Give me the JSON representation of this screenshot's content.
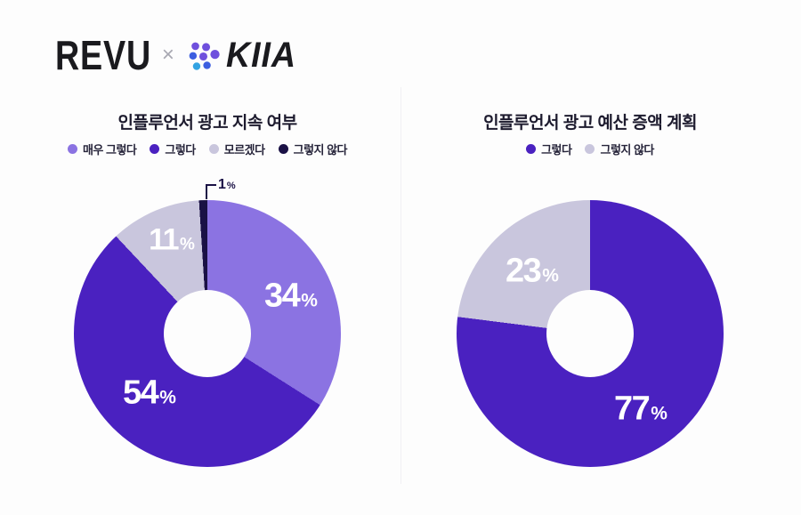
{
  "header": {
    "revu_logo": "REVU",
    "separator": "×",
    "kiia_logo": "KIIA",
    "kiia_mark_colors": [
      "#6f50dd",
      "#6f50dd",
      "#3c5ee0",
      "#6f50dd",
      "#6f50dd",
      "#33a3e2",
      "#3c5ee0"
    ]
  },
  "colors": {
    "background": "#fdfdfd",
    "deep_purple": "#4a21c0",
    "light_purple": "#8b73e2",
    "lavender_gray": "#c9c6dd",
    "dark_navy": "#1a1145",
    "title_text": "#1d1b2e"
  },
  "chart_data": [
    {
      "type": "pie",
      "subtype": "donut",
      "title": "인플루언서 광고 지속 여부",
      "categories": [
        "매우 그렇다",
        "그렇다",
        "모르겠다",
        "그렇지 않다"
      ],
      "values": [
        34,
        54,
        11,
        1
      ],
      "unit": "%",
      "labels": [
        "34%",
        "54%",
        "11%",
        "1%"
      ],
      "colors": [
        "#8b73e2",
        "#4a21c0",
        "#c9c6dd",
        "#1a1145"
      ],
      "legend_position": "top",
      "start_angle_deg": 0,
      "direction": "clockwise",
      "donut_hole_ratio": 0.33,
      "callout": {
        "category": "그렇지 않다",
        "label": "1%"
      }
    },
    {
      "type": "pie",
      "subtype": "donut",
      "title": "인플루언서 광고 예산 증액 계획",
      "categories": [
        "그렇다",
        "그렇지 않다"
      ],
      "values": [
        77,
        23
      ],
      "unit": "%",
      "labels": [
        "77%",
        "23%"
      ],
      "colors": [
        "#4a21c0",
        "#c9c6dd"
      ],
      "legend_position": "top",
      "start_angle_deg": 0,
      "direction": "clockwise",
      "donut_hole_ratio": 0.33
    }
  ]
}
